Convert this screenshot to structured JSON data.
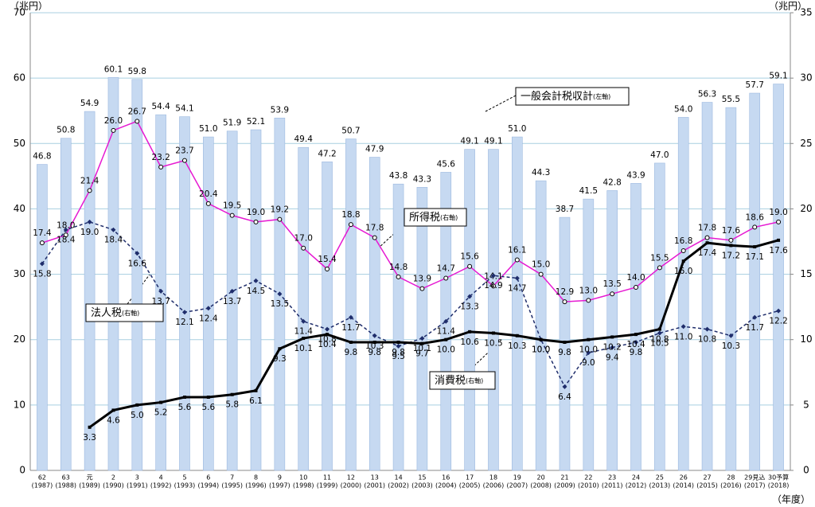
{
  "chart_data": {
    "type": "bar_line",
    "y_unit": "（兆円）",
    "y2_unit": "（兆円）",
    "x_unit": "（年度）",
    "categories": [
      "62",
      "63",
      "元",
      "2",
      "3",
      "4",
      "5",
      "6",
      "7",
      "8",
      "9",
      "10",
      "11",
      "12",
      "13",
      "14",
      "15",
      "16",
      "17",
      "18",
      "19",
      "20",
      "21",
      "22",
      "23",
      "24",
      "25",
      "26",
      "27",
      "28",
      "29見込",
      "30予算"
    ],
    "category_years": [
      "(1987)",
      "(1988)",
      "(1989)",
      "(1990)",
      "(1991)",
      "(1992)",
      "(1993)",
      "(1994)",
      "(1995)",
      "(1996)",
      "(1997)",
      "(1998)",
      "(1999)",
      "(2000)",
      "(2001)",
      "(2002)",
      "(2003)",
      "(2004)",
      "(2005)",
      "(2006)",
      "(2007)",
      "(2008)",
      "(2009)",
      "(2010)",
      "(2011)",
      "(2012)",
      "(2013)",
      "(2014)",
      "(2015)",
      "(2016)",
      "(2017)",
      "(2018)"
    ],
    "ylim": [
      0,
      70
    ],
    "yticks": [
      0,
      10,
      20,
      30,
      40,
      50,
      60,
      70
    ],
    "y2lim": [
      0,
      35
    ],
    "y2ticks": [
      0,
      5,
      10,
      15,
      20,
      25,
      30,
      35
    ],
    "grid": true,
    "series": [
      {
        "name": "一般会計税収計",
        "axis_label": "(左軸)",
        "kind": "bar",
        "color": "#c6d9f1",
        "values": [
          46.8,
          50.8,
          54.9,
          60.1,
          59.8,
          54.4,
          54.1,
          51.0,
          51.9,
          52.1,
          53.9,
          49.4,
          47.2,
          50.7,
          47.9,
          43.8,
          43.3,
          45.6,
          49.1,
          49.1,
          51.0,
          44.3,
          38.7,
          41.5,
          42.8,
          43.9,
          47.0,
          54.0,
          56.3,
          55.5,
          57.7,
          59.1
        ],
        "value_labels": [
          "46.8",
          "50.8",
          "54.9",
          "60.1",
          "59.8",
          "54.4",
          "54.1",
          "51.0",
          "51.9",
          "52.1",
          "53.9",
          "49.4",
          "47.2",
          "50.7",
          "47.9",
          "43.8",
          "43.3",
          "45.6",
          "49.1",
          "49.1",
          "51.0",
          "44.3",
          "38.7",
          "41.5",
          "42.8",
          "43.9",
          "47.0",
          "54.0",
          "56.3",
          "55.5",
          "57.7",
          "59.1"
        ]
      },
      {
        "name": "所得税",
        "axis_label": "(右軸)",
        "kind": "line",
        "axis": "y2",
        "color": "#e619d2",
        "values": [
          17.4,
          18.0,
          21.4,
          26.0,
          26.7,
          23.2,
          23.7,
          20.4,
          19.5,
          19.0,
          19.2,
          17.0,
          15.4,
          18.8,
          17.8,
          14.8,
          13.9,
          14.7,
          15.6,
          14.1,
          16.1,
          15.0,
          12.9,
          13.0,
          13.5,
          14.0,
          15.5,
          16.8,
          17.8,
          17.6,
          18.6,
          19.0
        ],
        "value_labels": [
          "17.4",
          "18.0",
          "21.4",
          "26.0",
          "26.7",
          "23.2",
          "23.7",
          "20.4",
          "19.5",
          "19.0",
          "19.2",
          "17.0",
          "15.4",
          "18.8",
          "17.8",
          "14.8",
          "13.9",
          "14.7",
          "15.6",
          "14.1",
          "16.1",
          "15.0",
          "12.9",
          "13.0",
          "13.5",
          "14.0",
          "15.5",
          "16.8",
          "17.8",
          "17.6",
          "18.6",
          "19.0"
        ]
      },
      {
        "name": "法人税",
        "axis_label": "(右軸)",
        "kind": "dashed",
        "axis": "y2",
        "color": "#1f2d6b",
        "values": [
          15.8,
          18.4,
          19.0,
          18.4,
          16.6,
          13.7,
          12.1,
          12.4,
          13.7,
          14.5,
          13.5,
          11.4,
          10.8,
          11.7,
          10.3,
          9.5,
          10.1,
          11.4,
          13.3,
          14.9,
          14.7,
          10.0,
          6.4,
          9.0,
          9.4,
          9.8,
          10.5,
          11.0,
          10.8,
          10.3,
          11.7,
          12.2
        ],
        "value_labels": [
          "15.8",
          "18.4",
          "19.0",
          "18.4",
          "16.6",
          "13.7",
          "12.1",
          "12.4",
          "13.7",
          "14.5",
          "13.5",
          "11.4",
          "10.8",
          "11.7",
          "10.3",
          "9.5",
          "10.1",
          "11.4",
          "13.3",
          "14.9",
          "14.7",
          "10.0",
          "6.4",
          "9.0",
          "9.4",
          "9.8",
          "10.5",
          "11.0",
          "10.8",
          "10.3",
          "11.7",
          "12.2"
        ]
      },
      {
        "name": "消費税",
        "axis_label": "(右軸)",
        "kind": "thick",
        "axis": "y2",
        "color": "#000000",
        "values": [
          null,
          null,
          3.3,
          4.6,
          5.0,
          5.2,
          5.6,
          5.6,
          5.8,
          6.1,
          9.3,
          10.1,
          10.4,
          9.8,
          9.8,
          9.8,
          9.7,
          10.0,
          10.6,
          10.5,
          10.3,
          10.0,
          9.8,
          10.0,
          10.2,
          10.4,
          10.8,
          16.0,
          17.4,
          17.2,
          17.1,
          17.6
        ],
        "value_labels": [
          null,
          null,
          "3.3",
          "4.6",
          "5.0",
          "5.2",
          "5.6",
          "5.6",
          "5.8",
          "6.1",
          "9.3",
          "10.1",
          "10.4",
          "9.8",
          "9.8",
          "9.8",
          "9.7",
          "10.0",
          "10.6",
          "10.5",
          "10.3",
          "10.0",
          "9.8",
          "10.0",
          "10.2",
          "10.4",
          "10.8",
          "16.0",
          "17.4",
          "17.2",
          "17.1",
          "17.6"
        ]
      }
    ]
  }
}
